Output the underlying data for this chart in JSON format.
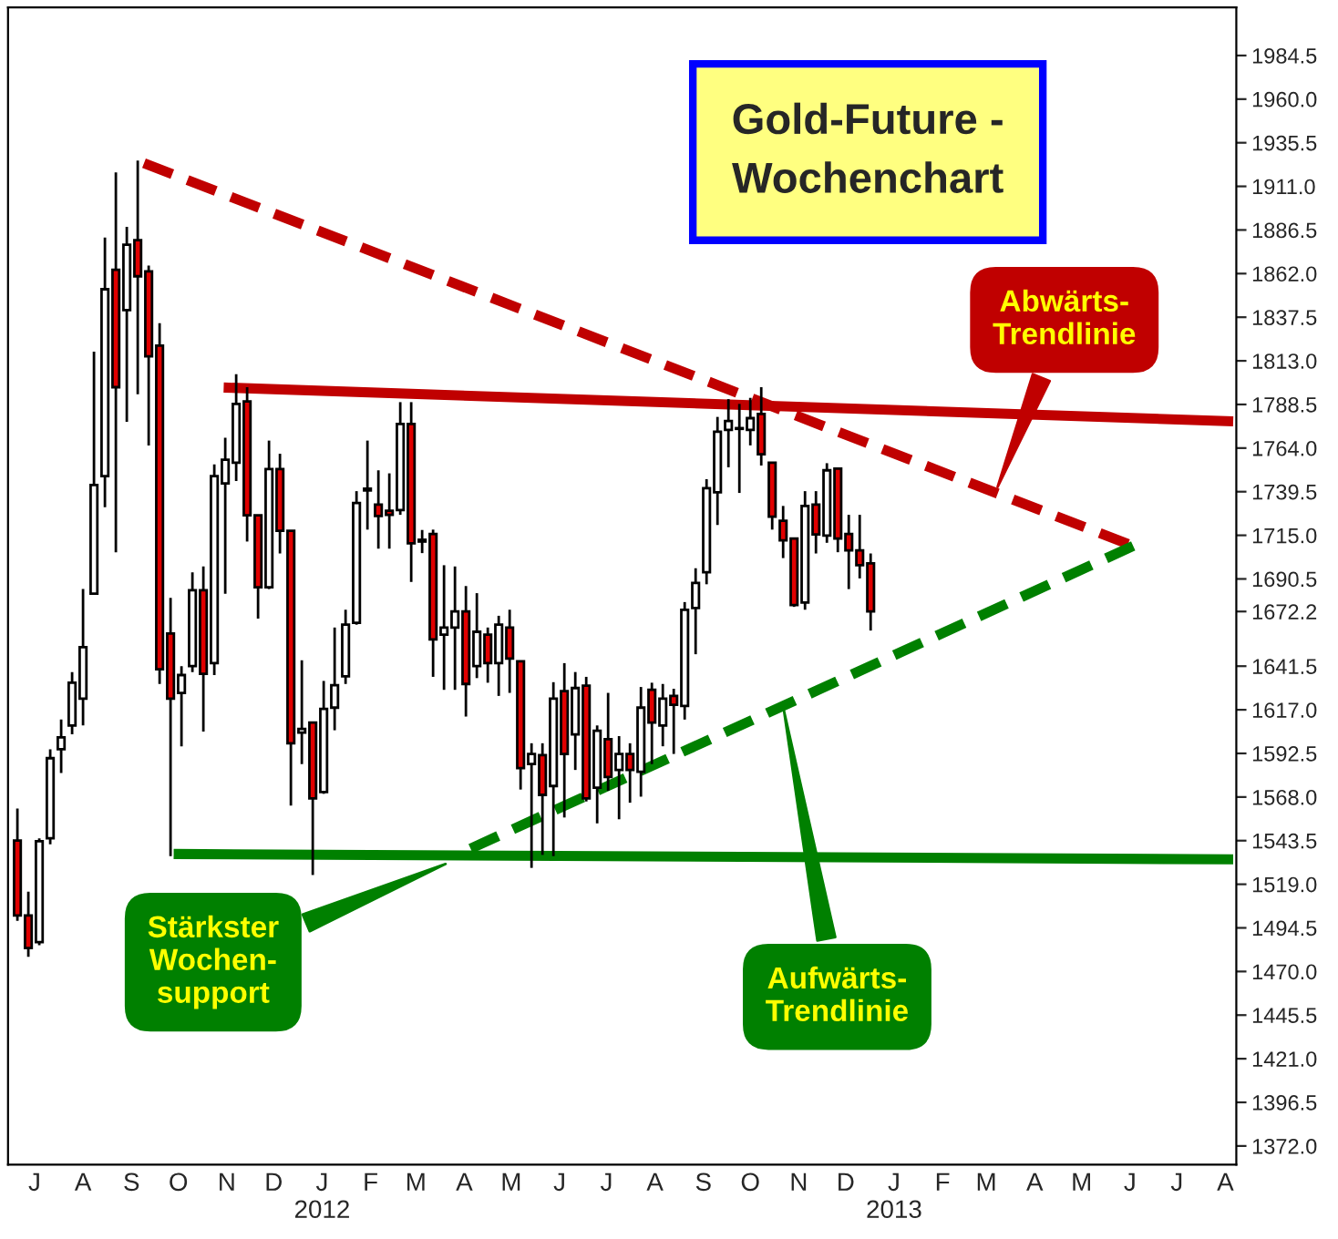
{
  "chart_data": {
    "type": "candlestick",
    "title": "Gold-Future -\nWochenchart",
    "x": [
      "2011-06-20",
      "2011-06-27",
      "2011-07-04",
      "2011-07-11",
      "2011-07-18",
      "2011-07-25",
      "2011-08-01",
      "2011-08-08",
      "2011-08-15",
      "2011-08-22",
      "2011-08-29",
      "2011-09-05",
      "2011-09-12",
      "2011-09-19",
      "2011-09-26",
      "2011-10-03",
      "2011-10-10",
      "2011-10-17",
      "2011-10-24",
      "2011-10-31",
      "2011-11-07",
      "2011-11-14",
      "2011-11-21",
      "2011-11-28",
      "2011-12-05",
      "2011-12-12",
      "2011-12-19",
      "2011-12-26",
      "2012-01-02",
      "2012-01-09",
      "2012-01-16",
      "2012-01-23",
      "2012-01-30",
      "2012-02-06",
      "2012-02-13",
      "2012-02-20",
      "2012-02-27",
      "2012-03-05",
      "2012-03-12",
      "2012-03-19",
      "2012-03-26",
      "2012-04-02",
      "2012-04-09",
      "2012-04-16",
      "2012-04-23",
      "2012-04-30",
      "2012-05-07",
      "2012-05-14",
      "2012-05-21",
      "2012-05-28",
      "2012-06-04",
      "2012-06-11",
      "2012-06-18",
      "2012-06-25",
      "2012-07-02",
      "2012-07-09",
      "2012-07-16",
      "2012-07-23",
      "2012-07-30",
      "2012-08-06",
      "2012-08-13",
      "2012-08-20",
      "2012-08-27",
      "2012-09-03",
      "2012-09-10",
      "2012-09-17",
      "2012-09-24",
      "2012-10-01",
      "2012-10-08",
      "2012-10-15",
      "2012-10-22",
      "2012-10-29",
      "2012-11-05",
      "2012-11-12",
      "2012-11-19",
      "2012-11-26",
      "2012-12-03",
      "2012-12-10",
      "2012-12-17"
    ],
    "ohlc": [
      [
        1543.5,
        1561.5,
        1498.5,
        1501.5
      ],
      [
        1501.5,
        1514.8,
        1478.2,
        1483.2
      ],
      [
        1486.5,
        1544.8,
        1484.8,
        1543.2
      ],
      [
        1544.8,
        1594.8,
        1541.5,
        1589.8
      ],
      [
        1594.8,
        1611.5,
        1581.5,
        1601.5
      ],
      [
        1608.2,
        1638.2,
        1603.2,
        1632.2
      ],
      [
        1623.2,
        1684.8,
        1608.2,
        1652.2
      ],
      [
        1682.2,
        1818.2,
        1682.2,
        1743.2
      ],
      [
        1748.2,
        1882.2,
        1730.8,
        1853.2
      ],
      [
        1864.2,
        1918.8,
        1705.5,
        1798.2
      ],
      [
        1841.5,
        1888.2,
        1778.8,
        1878.2
      ],
      [
        1880.8,
        1925.5,
        1794.2,
        1860.5
      ],
      [
        1863.2,
        1866.5,
        1765.5,
        1815.5
      ],
      [
        1821.5,
        1834.2,
        1631.5,
        1639.8
      ],
      [
        1659.8,
        1679.8,
        1534.8,
        1623.2
      ],
      [
        1626.5,
        1641.5,
        1596.5,
        1636.5
      ],
      [
        1641.5,
        1694.2,
        1638.2,
        1684.2
      ],
      [
        1684.2,
        1697.5,
        1604.8,
        1637.2
      ],
      [
        1643.2,
        1754.8,
        1636.5,
        1748.2
      ],
      [
        1744.2,
        1769.8,
        1682.2,
        1757.5
      ],
      [
        1755.8,
        1805.5,
        1745.5,
        1788.8
      ],
      [
        1790.2,
        1798.2,
        1711.5,
        1726.2
      ],
      [
        1726.2,
        1726.2,
        1668.2,
        1685.8
      ],
      [
        1685.8,
        1768.2,
        1684.8,
        1752.2
      ],
      [
        1752.2,
        1760.8,
        1704.8,
        1717.5
      ],
      [
        1717.5,
        1717.5,
        1563.2,
        1598.2
      ],
      [
        1604.2,
        1644.8,
        1586.5,
        1606.2
      ],
      [
        1609.8,
        1609.8,
        1524.2,
        1567.2
      ],
      [
        1570.8,
        1633.2,
        1569.8,
        1617.5
      ],
      [
        1618.2,
        1663.2,
        1605.5,
        1630.8
      ],
      [
        1635.8,
        1673.2,
        1631.5,
        1664.8
      ],
      [
        1665.8,
        1739.8,
        1664.8,
        1733.2
      ],
      [
        1740.2,
        1768.2,
        1718.2,
        1741.2
      ],
      [
        1732.2,
        1751.5,
        1707.5,
        1725.8
      ],
      [
        1728.8,
        1749.8,
        1707.5,
        1726.5
      ],
      [
        1729.2,
        1789.8,
        1726.5,
        1777.5
      ],
      [
        1777.5,
        1789.8,
        1688.8,
        1710.5
      ],
      [
        1712.5,
        1718.0,
        1705.0,
        1711.5
      ],
      [
        1715.8,
        1718.2,
        1635.5,
        1656.5
      ],
      [
        1659.2,
        1698.2,
        1628.2,
        1663.2
      ],
      [
        1663.2,
        1697.5,
        1628.2,
        1672.2
      ],
      [
        1672.2,
        1686.5,
        1613.2,
        1631.5
      ],
      [
        1641.5,
        1682.5,
        1634.8,
        1660.8
      ],
      [
        1659.2,
        1663.2,
        1632.2,
        1643.2
      ],
      [
        1643.2,
        1669.8,
        1624.8,
        1664.8
      ],
      [
        1663.2,
        1673.2,
        1626.5,
        1645.8
      ],
      [
        1644.2,
        1644.2,
        1572.2,
        1584.2
      ],
      [
        1586.5,
        1598.2,
        1528.2,
        1592.2
      ],
      [
        1591.5,
        1598.2,
        1535.5,
        1569.2
      ],
      [
        1574.2,
        1632.5,
        1534.8,
        1623.2
      ],
      [
        1627.5,
        1643.2,
        1556.5,
        1592.2
      ],
      [
        1603.2,
        1638.2,
        1583.2,
        1629.2
      ],
      [
        1630.5,
        1635.5,
        1565.5,
        1567.2
      ],
      [
        1573.2,
        1608.2,
        1553.2,
        1605.2
      ],
      [
        1600.5,
        1626.5,
        1571.5,
        1579.2
      ],
      [
        1583.2,
        1602.2,
        1555.5,
        1592.2
      ],
      [
        1592.2,
        1598.2,
        1564.8,
        1583.2
      ],
      [
        1582.2,
        1629.8,
        1568.2,
        1618.2
      ],
      [
        1628.2,
        1632.2,
        1586.5,
        1609.8
      ],
      [
        1608.2,
        1631.5,
        1596.5,
        1623.2
      ],
      [
        1624.8,
        1628.8,
        1592.2,
        1619.8
      ],
      [
        1619.2,
        1677.5,
        1611.5,
        1673.2
      ],
      [
        1674.2,
        1696.5,
        1648.2,
        1688.2
      ],
      [
        1694.2,
        1746.5,
        1687.5,
        1741.5
      ],
      [
        1739.2,
        1781.5,
        1720.8,
        1773.2
      ],
      [
        1774.2,
        1791.5,
        1753.2,
        1779.2
      ],
      [
        1775.2,
        1788.8,
        1738.8,
        1774.8
      ],
      [
        1774.2,
        1792.2,
        1765.5,
        1780.8
      ],
      [
        1783.2,
        1798.2,
        1754.2,
        1760.5
      ],
      [
        1755.8,
        1755.8,
        1718.2,
        1725.5
      ],
      [
        1723.2,
        1731.5,
        1702.2,
        1712.2
      ],
      [
        1713.2,
        1713.2,
        1674.8,
        1675.8
      ],
      [
        1677.2,
        1739.8,
        1673.2,
        1731.5
      ],
      [
        1732.2,
        1739.8,
        1704.8,
        1715.5
      ],
      [
        1714.8,
        1755.5,
        1710.8,
        1751.5
      ],
      [
        1752.5,
        1752.5,
        1705.5,
        1713.2
      ],
      [
        1715.8,
        1726.5,
        1684.8,
        1706.5
      ],
      [
        1706.5,
        1726.5,
        1690.8,
        1698.2
      ],
      [
        1699.2,
        1704.8,
        1661.5,
        1672.2
      ]
    ],
    "series": [
      {
        "type": "line",
        "color": "#c00000",
        "line_style": "dashed",
        "x": [
          "2011-09-09",
          "2013-06-03"
        ],
        "values": [
          1924,
          1709
        ]
      },
      {
        "type": "line",
        "color": "#c00000",
        "line_style": "solid",
        "x": [
          "2011-10-30",
          "2013-08-06"
        ],
        "values": [
          1798,
          1779
        ]
      },
      {
        "type": "line",
        "color": "#008000",
        "line_style": "solid",
        "x": [
          "2011-09-28",
          "2013-08-06"
        ],
        "values": [
          1536,
          1533
        ]
      },
      {
        "type": "line",
        "color": "#008000",
        "line_style": "dashed",
        "x": [
          "2012-04-05",
          "2013-06-03"
        ],
        "values": [
          1539,
          1709
        ]
      }
    ],
    "annotations": [
      {
        "text": "Abwärts-\nTrendlinie",
        "x": "2013-03-07",
        "y": 1739.5
      },
      {
        "text": "Stärkster\nWochen-\nsupport",
        "x": "2012-03-23",
        "y": 1531.5
      },
      {
        "text": "Aufwärts-\nTrendlinie",
        "x": "2012-10-22",
        "y": 1619
      }
    ],
    "xlim": [
      "2011-06-14",
      "2013-08-08"
    ],
    "xticks": [
      {
        "value": "2011-07-01",
        "label": "J"
      },
      {
        "value": "2011-08-01",
        "label": "A"
      },
      {
        "value": "2011-09-01",
        "label": "S"
      },
      {
        "value": "2011-10-01",
        "label": "O"
      },
      {
        "value": "2011-11-01",
        "label": "N"
      },
      {
        "value": "2011-12-01",
        "label": "D"
      },
      {
        "value": "2012-01-01",
        "label": "J\n2012"
      },
      {
        "value": "2012-02-01",
        "label": "F"
      },
      {
        "value": "2012-03-01",
        "label": "M"
      },
      {
        "value": "2012-04-01",
        "label": "A"
      },
      {
        "value": "2012-05-01",
        "label": "M"
      },
      {
        "value": "2012-06-01",
        "label": "J"
      },
      {
        "value": "2012-07-01",
        "label": "J"
      },
      {
        "value": "2012-08-01",
        "label": "A"
      },
      {
        "value": "2012-09-01",
        "label": "S"
      },
      {
        "value": "2012-10-01",
        "label": "O"
      },
      {
        "value": "2012-11-01",
        "label": "N"
      },
      {
        "value": "2012-12-01",
        "label": "D"
      },
      {
        "value": "2013-01-01",
        "label": "J\n2013"
      },
      {
        "value": "2013-02-01",
        "label": "F"
      },
      {
        "value": "2013-03-01",
        "label": "M"
      },
      {
        "value": "2013-04-01",
        "label": "A"
      },
      {
        "value": "2013-05-01",
        "label": "M"
      },
      {
        "value": "2013-06-01",
        "label": "J"
      },
      {
        "value": "2013-07-01",
        "label": "J"
      },
      {
        "value": "2013-08-01",
        "label": "A"
      }
    ],
    "ylim": [
      1361.5,
      2011.5
    ],
    "yticks": [
      {
        "value": 1372,
        "label": "1372.0"
      },
      1396.5,
      {
        "value": 1421,
        "label": "1421.0"
      },
      1445.5,
      {
        "value": 1470,
        "label": "1470.0"
      },
      1494.5,
      {
        "value": 1519,
        "label": "1519.0"
      },
      1543.5,
      {
        "value": 1568,
        "label": "1568.0"
      },
      1592.5,
      {
        "value": 1617,
        "label": "1617.0"
      },
      1641.5,
      1672.2,
      1690.5,
      {
        "value": 1715,
        "label": "1715.0"
      },
      1739.5,
      {
        "value": 1764,
        "label": "1764.0"
      },
      1788.5,
      {
        "value": 1813,
        "label": "1813.0"
      },
      1837.5,
      {
        "value": 1862,
        "label": "1862.0"
      },
      1886.5,
      {
        "value": 1911,
        "label": "1911.0"
      },
      1935.5,
      {
        "value": 1960,
        "label": "1960.0"
      },
      1984.5
    ]
  }
}
